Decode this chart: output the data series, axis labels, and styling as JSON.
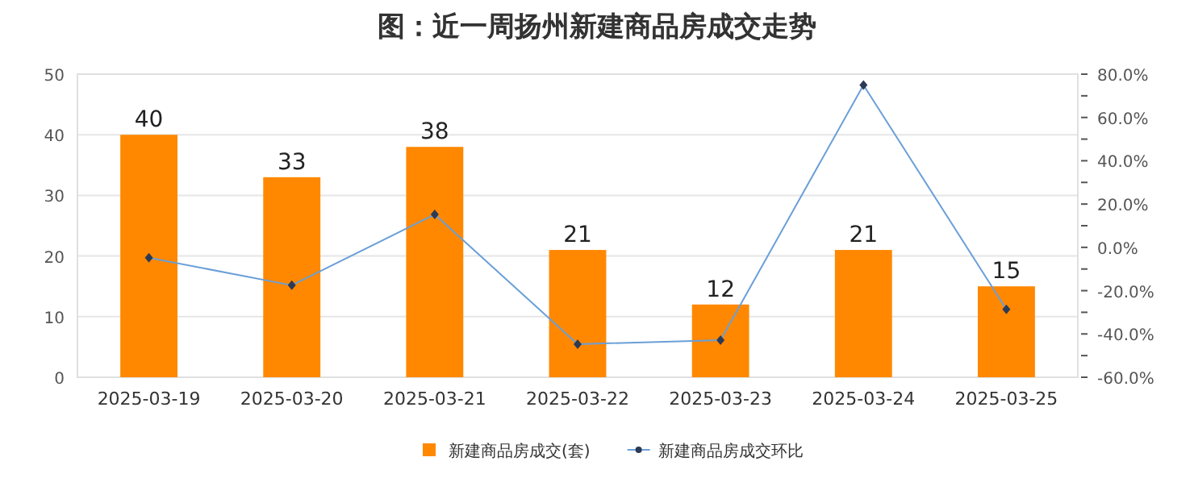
{
  "chart_data": {
    "type": "bar",
    "title": "图：近一周扬州新建商品房成交走势",
    "categories": [
      "2025-03-19",
      "2025-03-20",
      "2025-03-21",
      "2025-03-22",
      "2025-03-23",
      "2025-03-24",
      "2025-03-25"
    ],
    "series": [
      {
        "name": "新建商品房成交(套)",
        "color": "#ff8800",
        "values": [
          40,
          33,
          38,
          21,
          12,
          21,
          15
        ],
        "value_labels": [
          "40",
          "33",
          "38",
          "21",
          "12",
          "21",
          "15"
        ]
      },
      {
        "name": "新建商品房成交环比",
        "type": "line",
        "axis": "y2",
        "color": "#6a9fd8",
        "marker": "diamond",
        "values": [
          -4.8,
          -17.5,
          15.2,
          -44.7,
          -42.9,
          75.0,
          -28.6
        ]
      }
    ],
    "ylim": [
      0,
      50
    ],
    "yticks": [
      0,
      10,
      20,
      30,
      40,
      50
    ],
    "y2lim": [
      -60,
      80
    ],
    "y2ticks": [
      {
        "value": -60,
        "label": "-60.0%"
      },
      {
        "value": -50,
        "label": null
      },
      {
        "value": -40,
        "label": "-40.0%"
      },
      {
        "value": -30,
        "label": null
      },
      {
        "value": -20,
        "label": "-20.0%"
      },
      {
        "value": -10,
        "label": null
      },
      {
        "value": 0,
        "label": "0.0%"
      },
      {
        "value": 10,
        "label": null
      },
      {
        "value": 20,
        "label": "20.0%"
      },
      {
        "value": 30,
        "label": null
      },
      {
        "value": 40,
        "label": "40.0%"
      },
      {
        "value": 50,
        "label": null
      },
      {
        "value": 60,
        "label": "60.0%"
      },
      {
        "value": 70,
        "label": null
      },
      {
        "value": 80,
        "label": "80.0%"
      }
    ],
    "grid": "y",
    "legend": "bottom"
  }
}
